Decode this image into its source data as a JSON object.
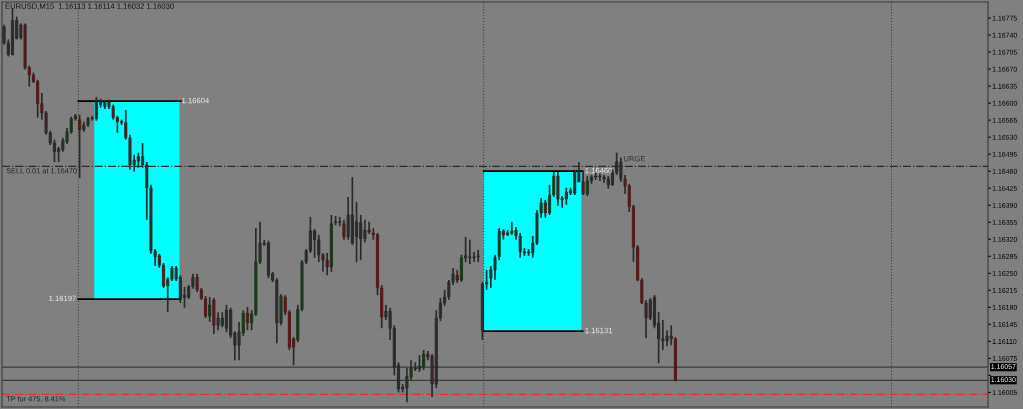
{
  "chart_data": {
    "type": "candlestick",
    "title": "EURUSD,M15  1.16113 1.16114 1.16032 1.16030",
    "categories": [
      null,
      null,
      null,
      null,
      null,
      null,
      null,
      null,
      null,
      null,
      null,
      null,
      null,
      null,
      null,
      null,
      null,
      null,
      null,
      null,
      null,
      null,
      null,
      null,
      null,
      null,
      null,
      null,
      null,
      null,
      null,
      null,
      null,
      null,
      null,
      null,
      null,
      null,
      null,
      null,
      null,
      null,
      null,
      null,
      null,
      null,
      null,
      null,
      null,
      null,
      null,
      null,
      null,
      null,
      null,
      null,
      null,
      null,
      null,
      null,
      null,
      null,
      null,
      null,
      null,
      null,
      null,
      null,
      null,
      null,
      null,
      null,
      null,
      null,
      null,
      null,
      null,
      null,
      null,
      null,
      null,
      null,
      null,
      null,
      null,
      null,
      null,
      null,
      null,
      null,
      null,
      null,
      null,
      null,
      null,
      null,
      null,
      null,
      null,
      null,
      null,
      null,
      null,
      null,
      null,
      null,
      null,
      null,
      null,
      null,
      null,
      null,
      null,
      null,
      null,
      null,
      null,
      null,
      null,
      null,
      null,
      null,
      null,
      null,
      null,
      null,
      null,
      null,
      null,
      null,
      null,
      null,
      null,
      null,
      null,
      null,
      null,
      null,
      null,
      null,
      null,
      null,
      null,
      null,
      null,
      null,
      null,
      null,
      null,
      null,
      null,
      null,
      null,
      null,
      null,
      null,
      null,
      null,
      null,
      null,
      null,
      null,
      null,
      null,
      null,
      null,
      null,
      null,
      null,
      null,
      null,
      null,
      null,
      null,
      null,
      null,
      null,
      null,
      null,
      null,
      null,
      null,
      null,
      null,
      null,
      null,
      null,
      null,
      null,
      null,
      null,
      null,
      null,
      null,
      null,
      null,
      null,
      null,
      null,
      null,
      null,
      null,
      null,
      null,
      null,
      null,
      null,
      null,
      null,
      null,
      null,
      null,
      null,
      null,
      null,
      null,
      null,
      null,
      null,
      null,
      null,
      null,
      null,
      null,
      null,
      null,
      null,
      null,
      null,
      null,
      null,
      null,
      null,
      null,
      null
    ],
    "ohlc": [
      [
        1.16757,
        1.16761,
        1.1672,
        1.16724
      ],
      [
        1.16724,
        1.16731,
        1.16696,
        1.167
      ],
      [
        1.167,
        1.16794,
        1.16698,
        1.1677
      ],
      [
        1.1677,
        1.16778,
        1.16731,
        1.16733
      ],
      [
        1.16735,
        1.16764,
        1.16731,
        1.16761
      ],
      [
        1.16761,
        1.16764,
        1.16669,
        1.16673
      ],
      [
        1.16673,
        1.16677,
        1.16634,
        1.16658
      ],
      [
        1.16658,
        1.16663,
        1.16642,
        1.16644
      ],
      [
        1.16644,
        1.16648,
        1.1657,
        1.16599
      ],
      [
        1.16599,
        1.16621,
        1.16566,
        1.1658
      ],
      [
        1.1658,
        1.16584,
        1.16535,
        1.16539
      ],
      [
        1.16539,
        1.16543,
        1.16514,
        1.16518
      ],
      [
        1.16518,
        1.16525,
        1.16479,
        1.165
      ],
      [
        1.165,
        1.1651,
        1.16479,
        1.16506
      ],
      [
        1.16504,
        1.16529,
        1.165,
        1.16523
      ],
      [
        1.1652,
        1.16549,
        1.16516,
        1.16541
      ],
      [
        1.16541,
        1.16572,
        1.16537,
        1.16568
      ],
      [
        1.16568,
        1.16578,
        1.16564,
        1.16574
      ],
      [
        1.16566,
        1.16576,
        1.16446,
        1.16545
      ],
      [
        1.16545,
        1.16562,
        1.16541,
        1.16555
      ],
      [
        1.16555,
        1.16572,
        1.16551,
        1.16568
      ],
      [
        1.16568,
        1.16574,
        1.16564,
        1.1657
      ],
      [
        1.16568,
        1.16613,
        1.16564,
        1.16607
      ],
      [
        1.16603,
        1.16609,
        1.16591,
        1.16597
      ],
      [
        1.16593,
        1.16605,
        1.16588,
        1.16603
      ],
      [
        1.16603,
        1.16607,
        1.16588,
        1.16593
      ],
      [
        1.16593,
        1.16597,
        1.16566,
        1.1657
      ],
      [
        1.1657,
        1.16574,
        1.16539,
        1.16562
      ],
      [
        1.16562,
        1.16566,
        1.16555,
        1.1656
      ],
      [
        1.1656,
        1.16586,
        1.16525,
        1.16529
      ],
      [
        1.16529,
        1.16535,
        1.16463,
        1.16473
      ],
      [
        1.16473,
        1.16494,
        1.16459,
        1.16483
      ],
      [
        1.16481,
        1.16498,
        1.16467,
        1.1649
      ],
      [
        1.1649,
        1.16518,
        1.16467,
        1.16473
      ],
      [
        1.16473,
        1.16479,
        1.1636,
        1.16426
      ],
      [
        1.16426,
        1.16432,
        1.1629,
        1.16296
      ],
      [
        1.16296,
        1.163,
        1.16265,
        1.16284
      ],
      [
        1.16286,
        1.1629,
        1.16261,
        1.16267
      ],
      [
        1.16267,
        1.16271,
        1.1622,
        1.16224
      ],
      [
        1.16224,
        1.16242,
        1.1617,
        1.16238
      ],
      [
        1.16238,
        1.16265,
        1.16234,
        1.16261
      ],
      [
        1.16261,
        1.16265,
        1.16234,
        1.16238
      ],
      [
        1.16242,
        1.16246,
        1.16189,
        1.16199
      ],
      [
        1.16201,
        1.16222,
        1.16179,
        1.16205
      ],
      [
        1.16201,
        1.16226,
        1.16197,
        1.16222
      ],
      [
        1.16222,
        1.16249,
        1.16218,
        1.16242
      ],
      [
        1.16242,
        1.16249,
        1.16211,
        1.16216
      ],
      [
        1.16216,
        1.1622,
        1.16195,
        1.16199
      ],
      [
        1.16197,
        1.16203,
        1.16158,
        1.16162
      ],
      [
        1.16162,
        1.16201,
        1.1615,
        1.16185
      ],
      [
        1.16195,
        1.16199,
        1.16125,
        1.16143
      ],
      [
        1.16143,
        1.1617,
        1.16133,
        1.16158
      ],
      [
        1.16158,
        1.1617,
        1.16139,
        1.16143
      ],
      [
        1.16137,
        1.16185,
        1.16129,
        1.16174
      ],
      [
        1.16174,
        1.16179,
        1.16117,
        1.16123
      ],
      [
        1.16127,
        1.16131,
        1.16071,
        1.16102
      ],
      [
        1.16102,
        1.1615,
        1.16071,
        1.16129
      ],
      [
        1.16127,
        1.16174,
        1.16121,
        1.16168
      ],
      [
        1.16168,
        1.16181,
        1.16133,
        1.16148
      ],
      [
        1.16148,
        1.16174,
        1.16133,
        1.16166
      ],
      [
        1.16166,
        1.16343,
        1.16162,
        1.16273
      ],
      [
        1.16273,
        1.16356,
        1.16269,
        1.16312
      ],
      [
        1.16312,
        1.16319,
        1.16306,
        1.1631
      ],
      [
        1.16312,
        1.16317,
        1.1624,
        1.16246
      ],
      [
        1.16249,
        1.16253,
        1.16232,
        1.16236
      ],
      [
        1.16236,
        1.1624,
        1.16106,
        1.16148
      ],
      [
        1.16148,
        1.16207,
        1.16143,
        1.16203
      ],
      [
        1.16201,
        1.16205,
        1.16164,
        1.1617
      ],
      [
        1.1617,
        1.16174,
        1.16092,
        1.16098
      ],
      [
        1.16115,
        1.16119,
        1.16061,
        1.16098
      ],
      [
        1.16113,
        1.16185,
        1.16108,
        1.16176
      ],
      [
        1.16176,
        1.16277,
        1.16172,
        1.16273
      ],
      [
        1.16273,
        1.163,
        1.16269,
        1.16296
      ],
      [
        1.16296,
        1.16366,
        1.16292,
        1.16337
      ],
      [
        1.16337,
        1.16341,
        1.16282,
        1.16319
      ],
      [
        1.16319,
        1.16329,
        1.16273,
        1.16288
      ],
      [
        1.16288,
        1.16292,
        1.16253,
        1.16277
      ],
      [
        1.16277,
        1.16292,
        1.16246,
        1.16263
      ],
      [
        1.16263,
        1.1637,
        1.16253,
        1.16352
      ],
      [
        1.16354,
        1.16368,
        1.16349,
        1.16356
      ],
      [
        1.16356,
        1.16366,
        1.16347,
        1.16354
      ],
      [
        1.16352,
        1.1636,
        1.16319,
        1.16325
      ],
      [
        1.16325,
        1.16407,
        1.16319,
        1.1637
      ],
      [
        1.1637,
        1.16448,
        1.16308,
        1.16312
      ],
      [
        1.16325,
        1.16397,
        1.16273,
        1.16356
      ],
      [
        1.16354,
        1.1637,
        1.16277,
        1.16321
      ],
      [
        1.16321,
        1.1636,
        1.16314,
        1.16339
      ],
      [
        1.16339,
        1.16356,
        1.16331,
        1.16335
      ],
      [
        1.16333,
        1.16343,
        1.16319,
        1.16329
      ],
      [
        1.16329,
        1.16333,
        1.16205,
        1.1622
      ],
      [
        1.1622,
        1.16226,
        1.16137,
        1.1616
      ],
      [
        1.1616,
        1.16185,
        1.16154,
        1.16172
      ],
      [
        1.16172,
        1.16179,
        1.16113,
        1.16137
      ],
      [
        1.16137,
        1.16143,
        1.1604,
        1.16057
      ],
      [
        1.16061,
        1.16067,
        1.16005,
        1.16012
      ],
      [
        1.16012,
        1.16022,
        1.16005,
        1.16016
      ],
      [
        1.16014,
        1.16055,
        1.15985,
        1.16038
      ],
      [
        1.16036,
        1.16071,
        1.1603,
        1.16055
      ],
      [
        1.16055,
        1.16067,
        1.16049,
        1.16053
      ],
      [
        1.16053,
        1.16082,
        1.16047,
        1.16059
      ],
      [
        1.16057,
        1.16092,
        1.16051,
        1.16084
      ],
      [
        1.16084,
        1.1609,
        1.16071,
        1.16078
      ],
      [
        1.1608,
        1.16084,
        1.15995,
        1.16022
      ],
      [
        1.16022,
        1.16174,
        1.16014,
        1.16158
      ],
      [
        1.16158,
        1.16199,
        1.16152,
        1.16189
      ],
      [
        1.16189,
        1.16216,
        1.16183,
        1.16201
      ],
      [
        1.16201,
        1.16236,
        1.16195,
        1.16232
      ],
      [
        1.16232,
        1.16261,
        1.16226,
        1.16249
      ],
      [
        1.16246,
        1.16257,
        1.1623,
        1.16236
      ],
      [
        1.16236,
        1.16288,
        1.16232,
        1.16282
      ],
      [
        1.16282,
        1.16325,
        1.16273,
        1.16286
      ],
      [
        1.16284,
        1.16319,
        1.16269,
        1.16282
      ],
      [
        1.16284,
        1.16294,
        1.16273,
        1.16282
      ],
      [
        1.16284,
        1.16298,
        1.16273,
        1.16286
      ],
      [
        1.16133,
        1.16232,
        1.16113,
        1.16228
      ],
      [
        1.16228,
        1.16257,
        1.16216,
        1.16232
      ],
      [
        1.1624,
        1.16265,
        1.1622,
        1.16257
      ],
      [
        1.16257,
        1.16288,
        1.16236,
        1.16282
      ],
      [
        1.16284,
        1.16343,
        1.16277,
        1.16337
      ],
      [
        1.16337,
        1.16341,
        1.16319,
        1.16329
      ],
      [
        1.16333,
        1.16339,
        1.16327,
        1.16329
      ],
      [
        1.16333,
        1.16356,
        1.16329,
        1.16337
      ],
      [
        1.16339,
        1.16345,
        1.16319,
        1.16327
      ],
      [
        1.16327,
        1.16333,
        1.16282,
        1.16294
      ],
      [
        1.16294,
        1.16302,
        1.16286,
        1.16292
      ],
      [
        1.16294,
        1.163,
        1.16286,
        1.16292
      ],
      [
        1.16292,
        1.16327,
        1.16282,
        1.16312
      ],
      [
        1.16312,
        1.1638,
        1.16308,
        1.16374
      ],
      [
        1.16374,
        1.16405,
        1.16364,
        1.16395
      ],
      [
        1.16395,
        1.16401,
        1.16364,
        1.16374
      ],
      [
        1.16374,
        1.16432,
        1.1637,
        1.16411
      ],
      [
        1.16411,
        1.16459,
        1.16407,
        1.1645
      ],
      [
        1.1645,
        1.16459,
        1.16389,
        1.16403
      ],
      [
        1.16405,
        1.16409,
        1.16385,
        1.16401
      ],
      [
        1.16403,
        1.16426,
        1.16391,
        1.16417
      ],
      [
        1.16415,
        1.16426,
        1.16411,
        1.1642
      ],
      [
        1.16415,
        1.16463,
        1.16411,
        1.16461
      ],
      [
        1.16461,
        1.16479,
        1.16438,
        1.16438
      ],
      [
        1.16438,
        1.16461,
        1.16411,
        1.16413
      ],
      [
        1.16413,
        1.1645,
        1.16409,
        1.1644
      ],
      [
        1.1644,
        1.16452,
        1.16434,
        1.16448
      ],
      [
        1.1645,
        1.16457,
        1.16442,
        1.16448
      ],
      [
        1.16448,
        1.16455,
        1.1644,
        1.1645
      ],
      [
        1.16448,
        1.16452,
        1.16436,
        1.16444
      ],
      [
        1.16444,
        1.1645,
        1.16424,
        1.16432
      ],
      [
        1.16432,
        1.16463,
        1.1643,
        1.16457
      ],
      [
        1.16457,
        1.16498,
        1.16452,
        1.16479
      ],
      [
        1.16479,
        1.16488,
        1.16438,
        1.16444
      ],
      [
        1.16444,
        1.16452,
        1.16413,
        1.1643
      ],
      [
        1.1643,
        1.16434,
        1.16376,
        1.16387
      ],
      [
        1.16387,
        1.16391,
        1.16273,
        1.16304
      ],
      [
        1.16304,
        1.16308,
        1.16234,
        1.16236
      ],
      [
        1.16236,
        1.1624,
        1.16187,
        1.16189
      ],
      [
        1.16189,
        1.16195,
        1.16117,
        1.16158
      ],
      [
        1.16158,
        1.16199,
        1.16154,
        1.16195
      ],
      [
        1.16201,
        1.16205,
        1.16137,
        1.16143
      ],
      [
        1.16148,
        1.1617,
        1.16065,
        1.16115
      ],
      [
        1.16115,
        1.16154,
        1.16092,
        1.16111
      ],
      [
        1.16111,
        1.16133,
        1.161,
        1.16121
      ],
      [
        1.16121,
        1.16143,
        1.16102,
        1.16115
      ],
      [
        1.16115,
        1.16119,
        1.16028,
        1.1603
      ],
      null,
      null,
      null,
      null,
      null,
      null,
      null,
      null,
      null,
      null,
      null,
      null,
      null,
      null,
      null,
      null,
      null,
      null,
      null,
      null,
      null,
      null,
      null,
      null,
      null,
      null,
      null,
      null,
      null,
      null,
      null,
      null,
      null,
      null,
      null,
      null,
      null,
      null,
      null,
      null,
      null,
      null,
      null,
      null,
      null,
      null,
      null,
      null,
      null,
      null,
      null,
      null,
      null,
      null,
      null,
      null,
      null,
      null,
      null,
      null,
      null,
      null,
      null,
      null,
      null,
      null,
      null,
      null,
      null,
      null,
      null,
      null,
      null,
      null
    ],
    "ylim": [
      1.15975,
      1.16808
    ],
    "yticks": [
      1.16005,
      {
        "value": 1.1604,
        "label": null
      },
      1.16075,
      {
        "value": 1.1611,
        "label": "1.16110"
      },
      1.16145,
      {
        "value": 1.1618,
        "label": "1.16180"
      },
      1.16215,
      {
        "value": 1.1625,
        "label": "1.16250"
      },
      1.16285,
      {
        "value": 1.1632,
        "label": "1.16320"
      },
      1.16355,
      {
        "value": 1.1639,
        "label": "1.16390"
      },
      1.16425,
      {
        "value": 1.1646,
        "label": "1.16460"
      },
      1.16495,
      {
        "value": 1.1653,
        "label": "1.16530"
      },
      1.16565,
      {
        "value": 1.166,
        "label": "1.16600"
      },
      1.16635,
      {
        "value": 1.1667,
        "label": "1.16670"
      },
      1.16705,
      {
        "value": 1.1674,
        "label": "1.16740"
      },
      1.16775
    ],
    "tick_labels": "y",
    "ref_lines": [
      {
        "axis": "y",
        "value": 1.1647,
        "label": "SELL 0.01 at 1.16470",
        "color": "#2a2a2a",
        "line_style": "dashed"
      },
      {
        "axis": "y",
        "value": 1.16001,
        "label": "TP for 475, 8.41%",
        "color": "#e03030",
        "line_style": "dashed"
      },
      {
        "axis": "y",
        "value": 1.16057,
        "label": "1.16057",
        "color": "#3a3a3a",
        "line_style": "solid"
      },
      {
        "axis": "y",
        "value": 1.1603,
        "label": "1.16030",
        "color": "#3a3a3a",
        "line_style": "solid"
      }
    ],
    "bands": [
      {
        "axis": "y",
        "from": 1.16197,
        "to": 1.16604,
        "color": "#00ffff"
      },
      {
        "axis": "y",
        "from": 1.16131,
        "to": 1.1646,
        "color": "#00ffff"
      }
    ],
    "annotations": [
      "1.16604",
      "1.16197",
      "1.16460",
      "1.16131",
      "URGE"
    ]
  }
}
